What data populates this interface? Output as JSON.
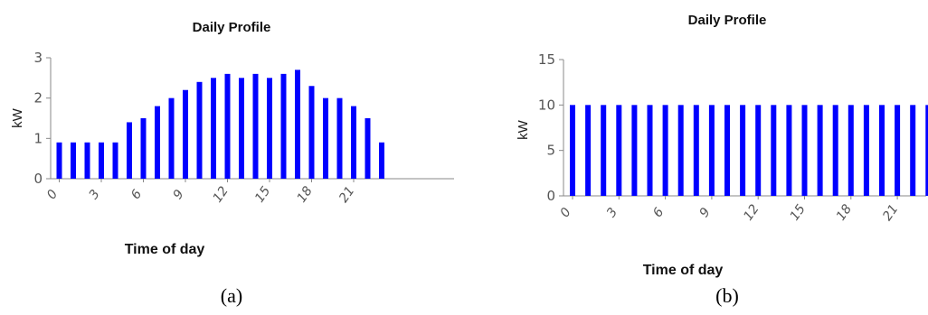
{
  "chart_data": [
    {
      "id": "a",
      "type": "bar",
      "title": "Daily Profile",
      "xlabel": "Time of day",
      "ylabel": "kW",
      "caption": "(a)",
      "color": "#0000ff",
      "categories": [
        0,
        1,
        2,
        3,
        4,
        5,
        6,
        7,
        8,
        9,
        10,
        11,
        12,
        13,
        14,
        15,
        16,
        17,
        18,
        19,
        20,
        21,
        22,
        23
      ],
      "values": [
        0.9,
        0.9,
        0.9,
        0.9,
        0.9,
        1.4,
        1.5,
        1.8,
        2.0,
        2.2,
        2.4,
        2.5,
        2.6,
        2.5,
        2.6,
        2.5,
        2.6,
        2.7,
        2.3,
        2.0,
        2.0,
        1.8,
        1.5,
        0.9
      ],
      "ylim": [
        0,
        3
      ],
      "yticks": [
        0,
        1,
        2,
        3
      ],
      "xticks": [
        0,
        3,
        6,
        9,
        12,
        15,
        18,
        21
      ],
      "grid": false,
      "legend": "none"
    },
    {
      "id": "b",
      "type": "bar",
      "title": "Daily Profile",
      "xlabel": "Time of day",
      "ylabel": "kW",
      "caption": "(b)",
      "color": "#0000ff",
      "categories": [
        0,
        1,
        2,
        3,
        4,
        5,
        6,
        7,
        8,
        9,
        10,
        11,
        12,
        13,
        14,
        15,
        16,
        17,
        18,
        19,
        20,
        21,
        22,
        23
      ],
      "values": [
        10,
        10,
        10,
        10,
        10,
        10,
        10,
        10,
        10,
        10,
        10,
        10,
        10,
        10,
        10,
        10,
        10,
        10,
        10,
        10,
        10,
        10,
        10,
        10
      ],
      "ylim": [
        0,
        15
      ],
      "yticks": [
        0,
        5,
        10,
        15
      ],
      "xticks": [
        0,
        3,
        6,
        9,
        12,
        15,
        18,
        21
      ],
      "grid": false,
      "legend": "none"
    }
  ]
}
